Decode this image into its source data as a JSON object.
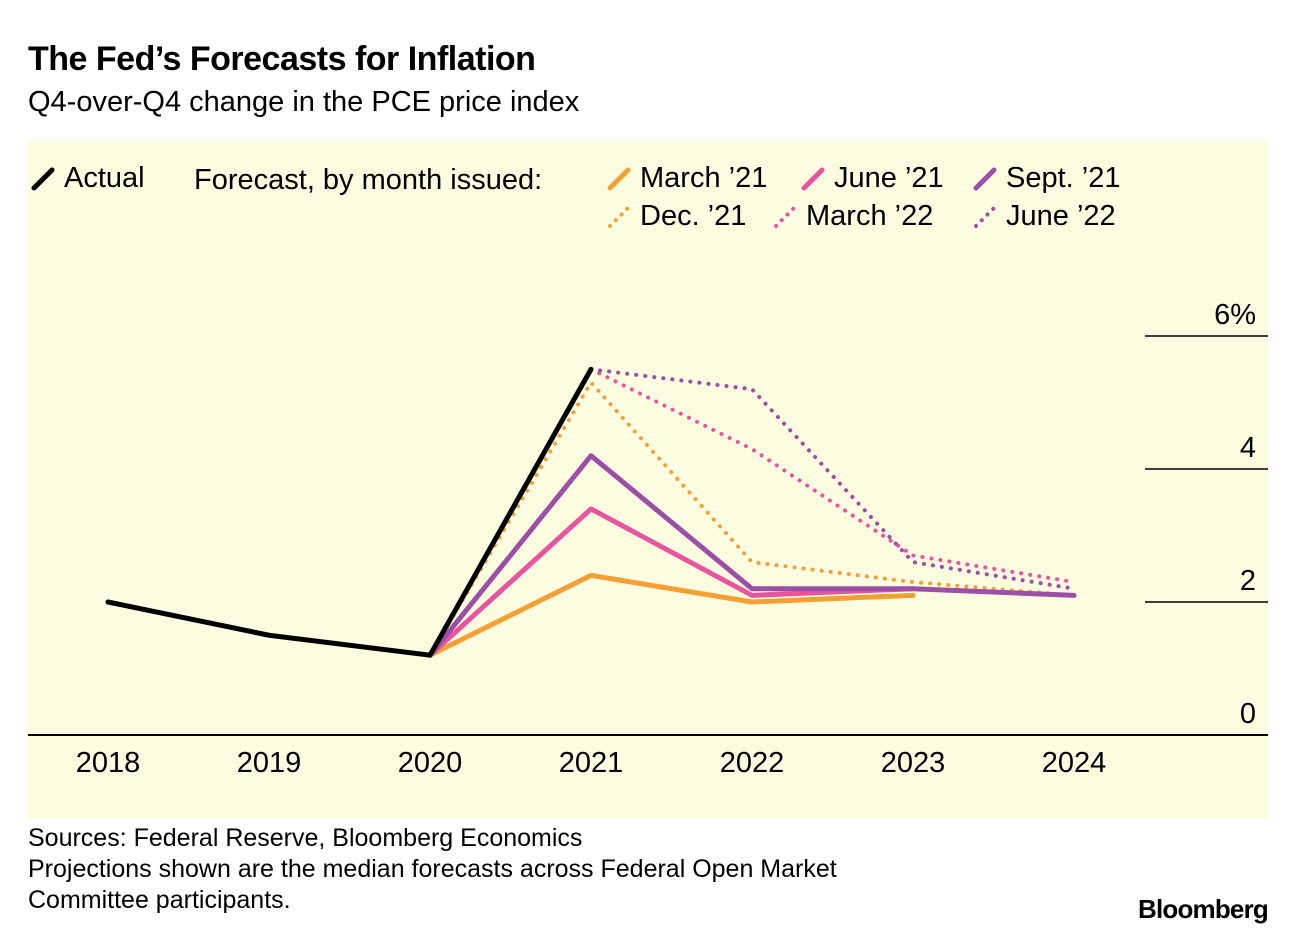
{
  "header": {
    "title": "The Fed’s Forecasts for Inflation",
    "subtitle": "Q4-over-Q4 change in the PCE price index"
  },
  "legend": {
    "actual_label": "Actual",
    "forecast_caption": "Forecast, by month issued:",
    "items": [
      {
        "label": "March ’21",
        "color": "#f4a035",
        "style": "solid"
      },
      {
        "label": "June ’21",
        "color": "#e8559f",
        "style": "solid"
      },
      {
        "label": "Sept. ’21",
        "color": "#9b4fa5",
        "style": "solid"
      },
      {
        "label": "Dec. ’21",
        "color": "#f4a035",
        "style": "dotted"
      },
      {
        "label": "March ’22",
        "color": "#e8559f",
        "style": "dotted"
      },
      {
        "label": "June ’22",
        "color": "#9b4fa5",
        "style": "dotted"
      }
    ]
  },
  "chart_data": {
    "type": "line",
    "x": [
      2018,
      2019,
      2020,
      2021,
      2022,
      2023,
      2024
    ],
    "xtick_labels": [
      "2018",
      "2019",
      "2020",
      "2021",
      "2022",
      "2023",
      "2024"
    ],
    "ytick_labels": [
      "0",
      "2",
      "4",
      "6%"
    ],
    "yticks": [
      0,
      2,
      4,
      6
    ],
    "ylim": [
      0,
      6
    ],
    "y_axis_side": "right",
    "series": [
      {
        "name": "Actual",
        "color": "#000000",
        "style": "solid",
        "x": [
          2018,
          2019,
          2020,
          2021
        ],
        "y": [
          2.0,
          1.5,
          1.2,
          5.5
        ]
      },
      {
        "name": "March ’21",
        "color": "#f4a035",
        "style": "solid",
        "x": [
          2020,
          2021,
          2022,
          2023
        ],
        "y": [
          1.2,
          2.4,
          2.0,
          2.1
        ]
      },
      {
        "name": "June ’21",
        "color": "#e8559f",
        "style": "solid",
        "x": [
          2020,
          2021,
          2022,
          2023
        ],
        "y": [
          1.2,
          3.4,
          2.1,
          2.2
        ]
      },
      {
        "name": "Sept. ’21",
        "color": "#9b4fa5",
        "style": "solid",
        "x": [
          2020,
          2021,
          2022,
          2023,
          2024
        ],
        "y": [
          1.2,
          4.2,
          2.2,
          2.2,
          2.1
        ]
      },
      {
        "name": "Dec. ’21",
        "color": "#f4a035",
        "style": "dotted",
        "x": [
          2020,
          2021,
          2022,
          2023,
          2024
        ],
        "y": [
          1.2,
          5.3,
          2.6,
          2.3,
          2.1
        ]
      },
      {
        "name": "March ’22",
        "color": "#e8559f",
        "style": "dotted",
        "x": [
          2021,
          2022,
          2023,
          2024
        ],
        "y": [
          5.5,
          4.3,
          2.7,
          2.3
        ]
      },
      {
        "name": "June ’22",
        "color": "#9b4fa5",
        "style": "dotted",
        "x": [
          2021,
          2022,
          2023,
          2024
        ],
        "y": [
          5.5,
          5.2,
          2.6,
          2.2
        ]
      }
    ]
  },
  "footer": {
    "source_line1": "Sources: Federal Reserve, Bloomberg Economics",
    "source_line2": "Projections shown are the median forecasts across Federal Open Market",
    "source_line3": "Committee participants.",
    "brand": "Bloomberg"
  }
}
